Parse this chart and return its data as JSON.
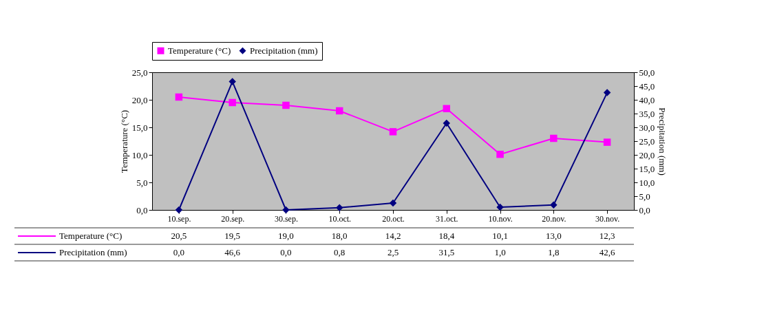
{
  "chart_data": {
    "type": "line",
    "categories": [
      "10.sep.",
      "20.sep.",
      "30.sep.",
      "10.oct.",
      "20.oct.",
      "31.oct.",
      "10.nov.",
      "20.nov.",
      "30.nov."
    ],
    "ylabel": "Temperature (°C)",
    "y2label": "Precipitation (mm)",
    "ylim": [
      0,
      25
    ],
    "yticks": [
      {
        "value": 0,
        "label": "0,0"
      },
      {
        "value": 5,
        "label": "5,0"
      },
      {
        "value": 10,
        "label": "10,0"
      },
      {
        "value": 15,
        "label": "15,0"
      },
      {
        "value": 20,
        "label": "20,0"
      },
      {
        "value": 25,
        "label": "25,0"
      }
    ],
    "y2lim": [
      0,
      50
    ],
    "y2ticks": [
      {
        "value": 0,
        "label": "0,0"
      },
      {
        "value": 5,
        "label": "5,0"
      },
      {
        "value": 10,
        "label": "10,0"
      },
      {
        "value": 15,
        "label": "15,0"
      },
      {
        "value": 20,
        "label": "20,0"
      },
      {
        "value": 25,
        "label": "25,0"
      },
      {
        "value": 30,
        "label": "30,0"
      },
      {
        "value": 35,
        "label": "35,0"
      },
      {
        "value": 40,
        "label": "40,0"
      },
      {
        "value": 45,
        "label": "45,0"
      },
      {
        "value": 50,
        "label": "50,0"
      }
    ],
    "grid": false,
    "legend": "top",
    "line_style": "solid",
    "series": [
      {
        "name": "Temperature (°C)",
        "color": "#ff00ff",
        "marker": "square",
        "values": [
          20.5,
          19.5,
          19.0,
          18.0,
          14.2,
          18.4,
          10.1,
          13.0,
          12.3
        ],
        "value_labels": [
          "20,5",
          "19,5",
          "19,0",
          "18,0",
          "14,2",
          "18,4",
          "10,1",
          "13,0",
          "12,3"
        ]
      },
      {
        "name": "Precipitation (mm)",
        "color": "#000080",
        "marker": "diamond",
        "axis": "y2",
        "values": [
          0.0,
          46.6,
          0.0,
          0.8,
          2.5,
          31.5,
          1.0,
          1.8,
          42.6
        ],
        "value_labels": [
          "0,0",
          "46,6",
          "0,0",
          "0,8",
          "2,5",
          "31,5",
          "1,0",
          "1,8",
          "42,6"
        ]
      }
    ]
  }
}
